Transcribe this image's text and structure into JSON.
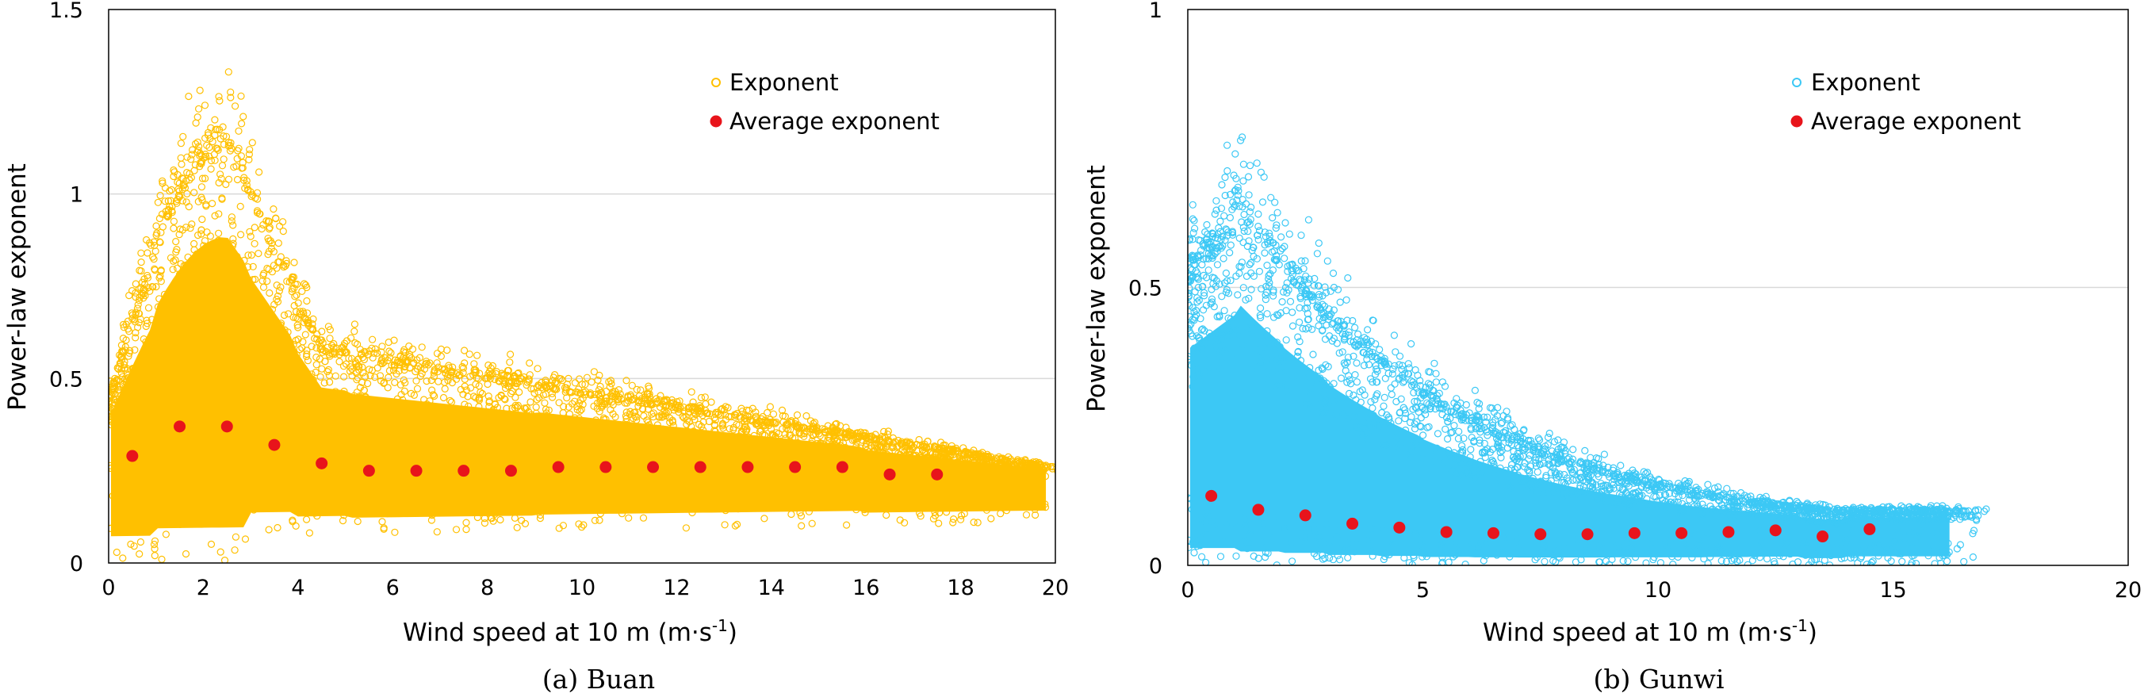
{
  "chart_data": [
    {
      "type": "scatter",
      "caption": "(a)  Buan",
      "xlabel": "Wind speed at 10 m (m·s",
      "xlabel_sup": "-1",
      "xlabel_end": ")",
      "ylabel": "Power-law exponent",
      "xlim": [
        0,
        20
      ],
      "ylim": [
        0,
        1.5
      ],
      "xticks": [
        "0",
        "2",
        "4",
        "6",
        "8",
        "10",
        "12",
        "14",
        "16",
        "18",
        "20"
      ],
      "yticks": [
        "0",
        "0.5",
        "1",
        "1.5"
      ],
      "grid": "horizontal",
      "legend_position": "top-right",
      "scatter_color": "#ffc000",
      "mean_color": "#e8141b",
      "series": [
        {
          "name": "Exponent",
          "style": "open-circle"
        },
        {
          "name": "Average exponent",
          "style": "filled-circle",
          "x": [
            0.5,
            1.5,
            2.5,
            3.5,
            4.5,
            5.5,
            6.5,
            7.5,
            8.5,
            9.5,
            10.5,
            11.5,
            12.5,
            13.5,
            14.5,
            15.5,
            16.5,
            17.5
          ],
          "y": [
            0.29,
            0.37,
            0.37,
            0.32,
            0.27,
            0.25,
            0.25,
            0.25,
            0.25,
            0.26,
            0.26,
            0.26,
            0.26,
            0.26,
            0.26,
            0.26,
            0.24,
            0.24
          ]
        }
      ]
    },
    {
      "type": "scatter",
      "caption": "(b)  Gunwi",
      "xlabel": "Wind speed at 10 m (m·s",
      "xlabel_sup": "-1",
      "xlabel_end": ")",
      "ylabel": "Power-law exponent",
      "xlim": [
        0,
        20
      ],
      "ylim": [
        0,
        1
      ],
      "xticks": [
        "0",
        "5",
        "10",
        "15",
        "20"
      ],
      "yticks": [
        "0",
        "0.5",
        "1"
      ],
      "grid": "horizontal",
      "legend_position": "top-right",
      "scatter_color": "#3cc8f5",
      "mean_color": "#e8141b",
      "series": [
        {
          "name": "Exponent",
          "style": "open-circle"
        },
        {
          "name": "Average exponent",
          "style": "filled-circle",
          "x": [
            0.5,
            1.5,
            2.5,
            3.5,
            4.5,
            5.5,
            6.5,
            7.5,
            8.5,
            9.5,
            10.5,
            11.5,
            12.5,
            13.5,
            14.5
          ],
          "y": [
            0.125,
            0.1,
            0.09,
            0.075,
            0.068,
            0.06,
            0.058,
            0.056,
            0.056,
            0.058,
            0.058,
            0.06,
            0.063,
            0.052,
            0.065
          ]
        }
      ]
    }
  ]
}
